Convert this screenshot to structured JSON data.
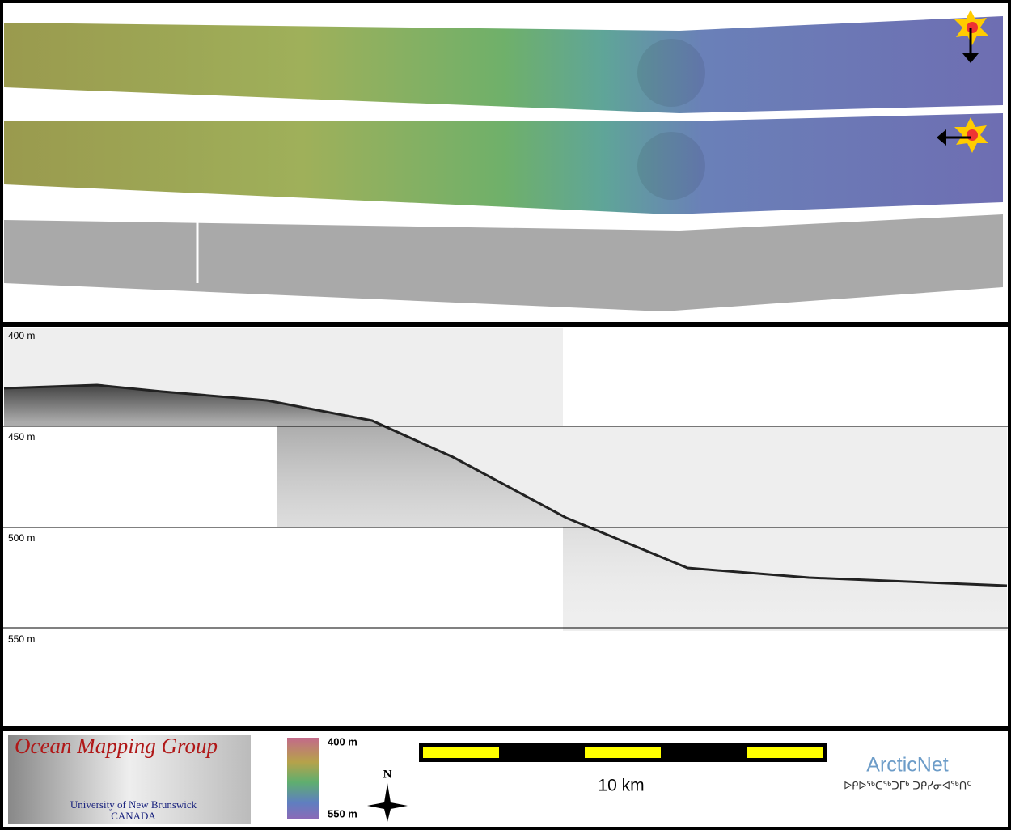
{
  "profile": {
    "depth_labels": [
      "400 m",
      "450 m",
      "500 m",
      "550 m"
    ]
  },
  "legend": {
    "logo_title": "Ocean Mapping Group",
    "logo_subtitle": "University of New Brunswick",
    "logo_country": "CANADA",
    "colorbar_top": "400 m",
    "colorbar_bottom": "550 m",
    "north": "N",
    "scale": "10 km",
    "partner": "ArcticNet",
    "partner_syllabics": "ᐅᑭᐅᖅᑕᖅᑐᒥᒃ ᑐᑭᓯᓂᐊᖅᑎᑦ"
  }
}
